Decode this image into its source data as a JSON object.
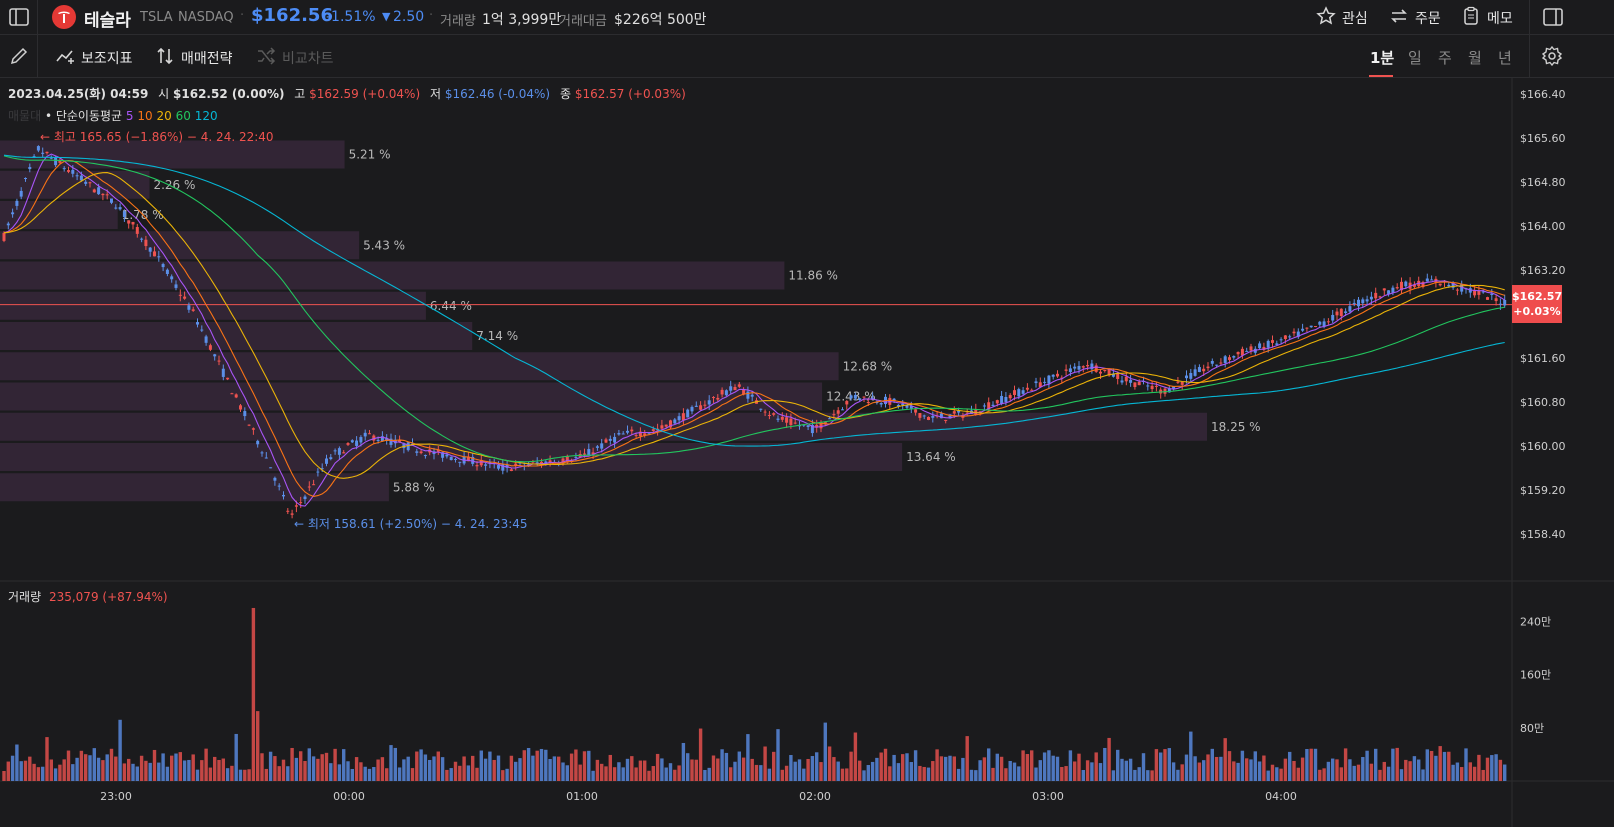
{
  "header": {
    "name": "테슬라",
    "ticker": "TSLA",
    "exchange": "NASDAQ",
    "price": "$162.56",
    "change_pct": "-1.51%",
    "change_abs": "2.50",
    "volume_label": "거래량",
    "volume_value": "1억 3,999만",
    "amount_label": "거래대금",
    "amount_value": "$226억 500만",
    "actions": [
      "관심",
      "주문",
      "메모"
    ]
  },
  "toolbar": {
    "indicators": "보조지표",
    "strategy": "매매전략",
    "compare": "비교차트",
    "periods": [
      "1분",
      "일",
      "주",
      "월",
      "년"
    ],
    "active_period": "1분"
  },
  "ohlc": {
    "date": "2023.04.25(화) 04:59",
    "open_label": "시",
    "open": "$162.52 (0.00%)",
    "high_label": "고",
    "high": "$162.59 (+0.04%)",
    "low_label": "저",
    "low": "$162.46 (-0.04%)",
    "close_label": "종",
    "close": "$162.57 (+0.03%)"
  },
  "ma": {
    "prefix": "매물대",
    "label": "• 단순이동평균",
    "periods": [
      "5",
      "10",
      "20",
      "60",
      "120"
    ]
  },
  "colors": {
    "up": "#ef5350",
    "down": "#5b8fe8",
    "bg": "#1b1b1d",
    "ma5": "#a855f7",
    "ma10": "#f97316",
    "ma20": "#eab308",
    "ma60": "#22c55e",
    "ma120": "#06b6d4",
    "profile": "#3b2a3d"
  },
  "annotations": {
    "high": "← 최고 165.65 (−1.86%) − 4. 24. 22:40",
    "low": "← 최저 158.61 (+2.50%) − 4. 24. 23:45"
  },
  "volume_label": "거래량",
  "volume_value": "235,079 (+87.94%)",
  "price_badge": {
    "price": "$162.57",
    "pct": "+0.03%"
  },
  "chart_data": [
    {
      "type": "candlestick",
      "title": "",
      "xlabel": "",
      "ylabel": "",
      "x_ticks": [
        "23:00",
        "00:00",
        "01:00",
        "02:00",
        "03:00",
        "04:00"
      ],
      "y_ticks": [
        "$166.40",
        "$165.60",
        "$164.80",
        "$164.00",
        "$163.20",
        "$162.40",
        "$161.60",
        "$160.80",
        "$160.00",
        "$159.20",
        "$158.40"
      ],
      "ylim": [
        158.0,
        166.8
      ],
      "last_price": 162.57,
      "series": [
        {
          "name": "close_approx",
          "x": [
            "22:30",
            "22:40",
            "22:50",
            "23:00",
            "23:10",
            "23:20",
            "23:30",
            "23:40",
            "23:45",
            "23:55",
            "00:05",
            "00:20",
            "00:40",
            "01:00",
            "01:10",
            "01:20",
            "01:30",
            "01:40",
            "01:50",
            "02:00",
            "02:10",
            "02:20",
            "02:30",
            "02:40",
            "02:50",
            "03:00",
            "03:10",
            "03:20",
            "03:30",
            "03:40",
            "03:50",
            "04:00",
            "04:10",
            "04:20",
            "04:30",
            "04:40",
            "04:50",
            "04:59"
          ],
          "values": [
            163.6,
            165.4,
            164.9,
            164.4,
            163.5,
            162.4,
            161.0,
            159.6,
            158.7,
            159.8,
            160.2,
            159.9,
            159.6,
            159.8,
            160.2,
            160.3,
            160.7,
            161.1,
            160.5,
            160.3,
            160.9,
            160.8,
            160.5,
            160.6,
            160.9,
            161.2,
            161.5,
            161.2,
            161.0,
            161.4,
            161.7,
            161.9,
            162.2,
            162.6,
            162.9,
            163.0,
            162.8,
            162.57
          ]
        }
      ],
      "volume_profile": [
        {
          "pct": "5.21 %",
          "value": 5.21,
          "price": 165.3
        },
        {
          "pct": "2.26 %",
          "value": 2.26,
          "price": 164.75
        },
        {
          "pct": "1.78 %",
          "value": 1.78,
          "price": 164.2
        },
        {
          "pct": "5.43 %",
          "value": 5.43,
          "price": 163.65
        },
        {
          "pct": "11.86 %",
          "value": 11.86,
          "price": 163.1
        },
        {
          "pct": "6.44 %",
          "value": 6.44,
          "price": 162.55
        },
        {
          "pct": "7.14 %",
          "value": 7.14,
          "price": 162.0
        },
        {
          "pct": "12.68 %",
          "value": 12.68,
          "price": 161.45
        },
        {
          "pct": "12.43 %",
          "value": 12.43,
          "price": 160.9
        },
        {
          "pct": "18.25 %",
          "value": 18.25,
          "price": 160.35
        },
        {
          "pct": "13.64 %",
          "value": 13.64,
          "price": 159.8
        },
        {
          "pct": "5.88 %",
          "value": 5.88,
          "price": 159.25
        }
      ]
    },
    {
      "type": "bar",
      "title": "",
      "y_ticks": [
        "240만",
        "160만",
        "80만"
      ],
      "ylim": [
        0,
        2900000
      ],
      "max_value": 2600000
    }
  ]
}
